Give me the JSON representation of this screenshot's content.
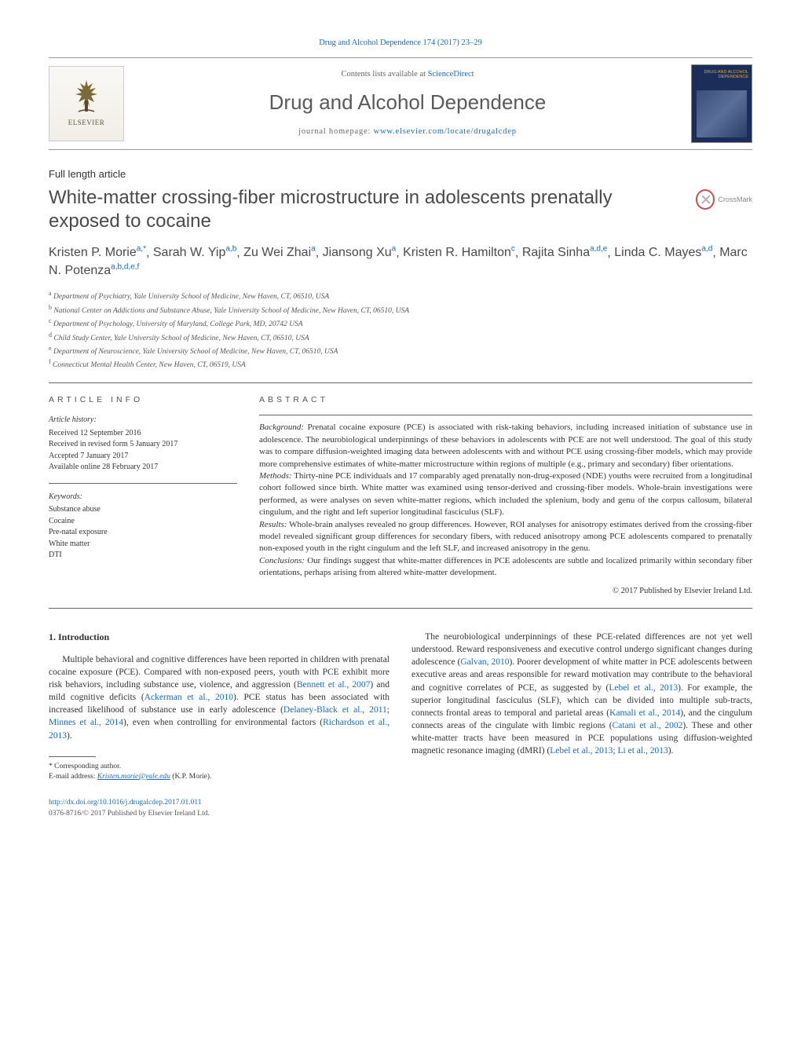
{
  "meta": {
    "citation_header": "Drug and Alcohol Dependence 174 (2017) 23–29",
    "contents_prefix": "Contents lists available at ",
    "contents_link": "ScienceDirect",
    "journal_name": "Drug and Alcohol Dependence",
    "homepage_prefix": "journal homepage: ",
    "homepage_link": "www.elsevier.com/locate/drugalcdep",
    "publisher_logo": "ELSEVIER",
    "cover_label": "DRUG AND ALCOHOL DEPENDENCE"
  },
  "article": {
    "type": "Full length article",
    "title": "White-matter crossing-fiber microstructure in adolescents prenatally exposed to cocaine",
    "crossmark": "CrossMark"
  },
  "authors": [
    {
      "name": "Kristen P. Morie",
      "aff": "a,*"
    },
    {
      "name": "Sarah W. Yip",
      "aff": "a,b"
    },
    {
      "name": "Zu Wei Zhai",
      "aff": "a"
    },
    {
      "name": "Jiansong Xu",
      "aff": "a"
    },
    {
      "name": "Kristen R. Hamilton",
      "aff": "c"
    },
    {
      "name": "Rajita Sinha",
      "aff": "a,d,e"
    },
    {
      "name": "Linda C. Mayes",
      "aff": "a,d"
    },
    {
      "name": "Marc N. Potenza",
      "aff": "a,b,d,e,f"
    }
  ],
  "affiliations": [
    {
      "key": "a",
      "text": "Department of Psychiatry, Yale University School of Medicine, New Haven, CT, 06510, USA"
    },
    {
      "key": "b",
      "text": "National Center on Addictions and Substance Abuse, Yale University School of Medicine, New Haven, CT, 06510, USA"
    },
    {
      "key": "c",
      "text": "Department of Psychology, University of Maryland, College Park, MD, 20742 USA"
    },
    {
      "key": "d",
      "text": "Child Study Center, Yale University School of Medicine, New Haven, CT, 06510, USA"
    },
    {
      "key": "e",
      "text": "Department of Neuroscience, Yale University School of Medicine, New Haven, CT, 06510, USA"
    },
    {
      "key": "f",
      "text": "Connecticut Mental Health Center, New Haven, CT, 06519, USA"
    }
  ],
  "article_info": {
    "heading": "article info",
    "history_label": "Article history:",
    "history": [
      "Received 12 September 2016",
      "Received in revised form 5 January 2017",
      "Accepted 7 January 2017",
      "Available online 28 February 2017"
    ],
    "keywords_label": "Keywords:",
    "keywords": [
      "Substance abuse",
      "Cocaine",
      "Pre-natal exposure",
      "White matter",
      "DTI"
    ]
  },
  "abstract": {
    "heading": "abstract",
    "sections": [
      {
        "label": "Background:",
        "text": "Prenatal cocaine exposure (PCE) is associated with risk-taking behaviors, including increased initiation of substance use in adolescence. The neurobiological underpinnings of these behaviors in adolescents with PCE are not well understood. The goal of this study was to compare diffusion-weighted imaging data between adolescents with and without PCE using crossing-fiber models, which may provide more comprehensive estimates of white-matter microstructure within regions of multiple (e.g., primary and secondary) fiber orientations."
      },
      {
        "label": "Methods:",
        "text": "Thirty-nine PCE individuals and 17 comparably aged prenatally non-drug-exposed (NDE) youths were recruited from a longitudinal cohort followed since birth. White matter was examined using tensor-derived and crossing-fiber models. Whole-brain investigations were performed, as were analyses on seven white-matter regions, which included the splenium, body and genu of the corpus callosum, bilateral cingulum, and the right and left superior longitudinal fasciculus (SLF)."
      },
      {
        "label": "Results:",
        "text": "Whole-brain analyses revealed no group differences. However, ROI analyses for anisotropy estimates derived from the crossing-fiber model revealed significant group differences for secondary fibers, with reduced anisotropy among PCE adolescents compared to prenatally non-exposed youth in the right cingulum and the left SLF, and increased anisotropy in the genu."
      },
      {
        "label": "Conclusions:",
        "text": "Our findings suggest that white-matter differences in PCE adolescents are subtle and localized primarily within secondary fiber orientations, perhaps arising from altered white-matter development."
      }
    ],
    "copyright": "© 2017 Published by Elsevier Ireland Ltd."
  },
  "body": {
    "section_num": "1.",
    "section_title": "Introduction",
    "col1_p1_pre": "Multiple behavioral and cognitive differences have been reported in children with prenatal cocaine exposure (PCE). Compared with non-exposed peers, youth with PCE exhibit more risk behaviors, including substance use, violence, and aggression (",
    "col1_cite1": "Bennett et al., 2007",
    "col1_p1_mid1": ") and mild cognitive deficits (",
    "col1_cite2": "Ackerman et al., 2010",
    "col1_p1_mid2": "). PCE status has been associated with increased likelihood of substance use in early adolescence (",
    "col1_cite3": "Delaney-Black et al., 2011; Minnes et al., 2014",
    "col1_p1_mid3": "), even when controlling for environmental factors (",
    "col1_cite4": "Richardson et al., 2013",
    "col1_p1_end": ").",
    "col2_p1_pre": "The neurobiological underpinnings of these PCE-related differences are not yet well understood. Reward responsiveness and executive control undergo significant changes during adolescence (",
    "col2_cite1": "Galvan, 2010",
    "col2_p1_mid1": "). Poorer development of white matter in PCE adolescents between executive areas and areas responsible for reward motivation may contribute to the behavioral and cognitive correlates of PCE, as suggested by (",
    "col2_cite2": "Lebel et al., 2013",
    "col2_p1_mid2": "). For example, the superior longitudinal fasciculus (SLF), which can be divided into multiple sub-tracts, connects frontal areas to temporal and parietal areas (",
    "col2_cite3": "Kamali et al., 2014",
    "col2_p1_mid3": "), and the cingulum connects areas of the cingulate with limbic regions (",
    "col2_cite4": "Catani et al., 2002",
    "col2_p1_mid4": "). These and other white-matter tracts have been measured in PCE populations using diffusion-weighted magnetic resonance imaging (dMRI) (",
    "col2_cite5": "Lebel et al., 2013; Li et al., 2013",
    "col2_p1_end": ")."
  },
  "footnote": {
    "corr_label": "* Corresponding author.",
    "email_label": "E-mail address: ",
    "email": "Kristen.morie@yale.edu",
    "email_suffix": " (K.P. Morie)."
  },
  "doi": {
    "url": "http://dx.doi.org/10.1016/j.drugalcdep.2017.01.011",
    "issn_line": "0376-8716/© 2017 Published by Elsevier Ireland Ltd."
  },
  "style": {
    "link_color": "#1a6bbf",
    "text_color": "#333333",
    "muted_color": "#555555",
    "rule_color": "#666666",
    "background": "#ffffff",
    "title_fontsize": 24,
    "journal_fontsize": 26,
    "body_fontsize": 11.5,
    "abstract_fontsize": 11,
    "info_fontsize": 10,
    "footnote_fontsize": 9.5
  }
}
